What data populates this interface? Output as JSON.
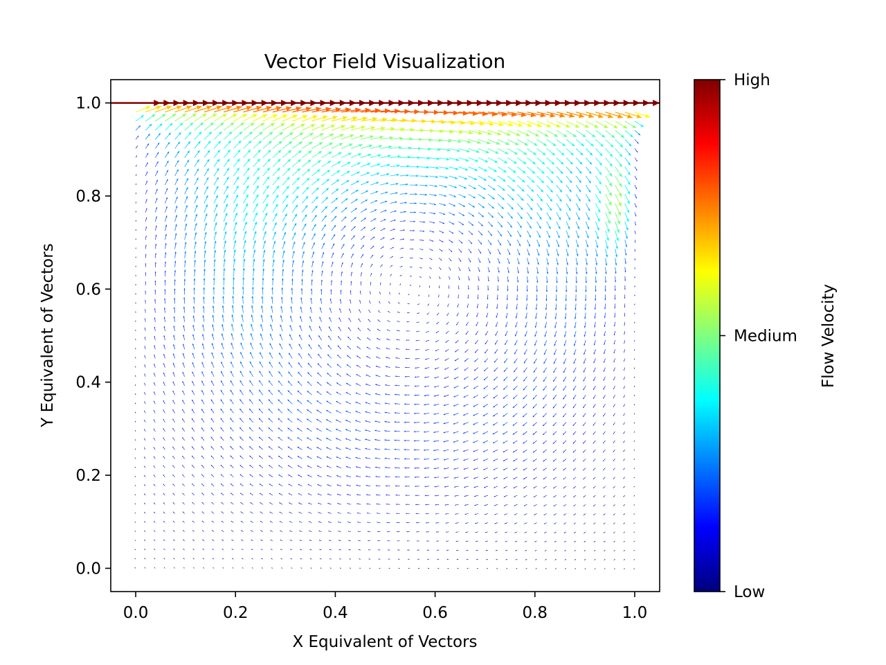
{
  "chart_data": {
    "type": "quiver",
    "title": "Vector Field Visualization",
    "xlabel": "X Equivalent of Vectors",
    "ylabel": "Y Equivalent of Vectors",
    "xlim": [
      -0.05,
      1.05
    ],
    "ylim": [
      -0.05,
      1.05
    ],
    "x_ticks": [
      0.0,
      0.2,
      0.4,
      0.6,
      0.8,
      1.0
    ],
    "x_tick_labels": [
      "0.0",
      "0.2",
      "0.4",
      "0.6",
      "0.8",
      "1.0"
    ],
    "y_ticks": [
      0.0,
      0.2,
      0.4,
      0.6,
      0.8,
      1.0
    ],
    "y_tick_labels": [
      "0.0",
      "0.2",
      "0.4",
      "0.6",
      "0.8",
      "1.0"
    ],
    "grid": false,
    "field": {
      "description_kind": "lid-driven cavity flow",
      "x_range": [
        0.0,
        1.0
      ],
      "y_range": [
        0.0,
        1.0
      ],
      "vortex_center": [
        0.55,
        0.6
      ],
      "lid_y": 1.0,
      "lid_direction": "right"
    },
    "colorbar": {
      "label": "Flow Velocity",
      "colormap": "jet",
      "ticks": [
        {
          "position": 0.0,
          "label": "Low"
        },
        {
          "position": 0.5,
          "label": "Medium"
        },
        {
          "position": 1.0,
          "label": "High"
        }
      ]
    },
    "colors": {
      "jet": [
        "#00007f",
        "#0000ff",
        "#007fff",
        "#00ffff",
        "#7fff7f",
        "#ffff00",
        "#ff7f00",
        "#ff0000",
        "#7f0000"
      ],
      "lid": "#7f0000"
    }
  }
}
